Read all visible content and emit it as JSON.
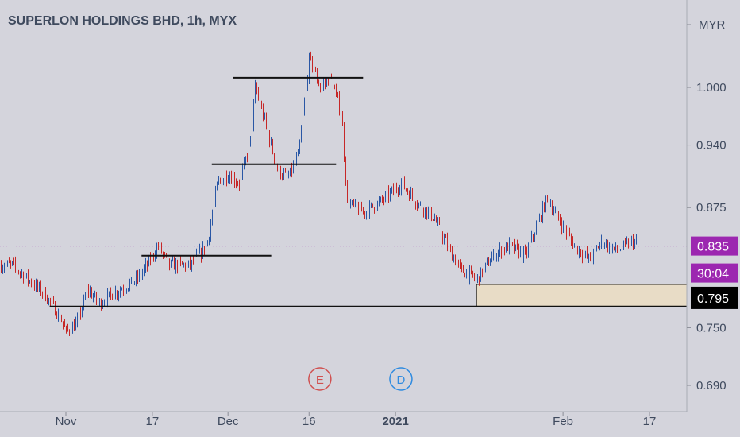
{
  "header": {
    "title": "SUPERLON HOLDINGS BHD, 1h, MYX"
  },
  "price_axis": {
    "currency": "MYR",
    "ticks": [
      "1.000",
      "0.940",
      "0.875",
      "0.750",
      "0.690"
    ],
    "tick_values": [
      1.0,
      0.94,
      0.875,
      0.75,
      0.69
    ],
    "last_price_label": "0.835",
    "countdown_label": "30:04",
    "level_label": "0.795",
    "label_bg_colors": {
      "last_price": "#9c27b0",
      "countdown": "#9c27b0",
      "level": "#000000"
    }
  },
  "time_axis": {
    "ticks": [
      {
        "label": "Nov",
        "date": "2020-11-01"
      },
      {
        "label": "17",
        "date": "2020-11-17"
      },
      {
        "label": "Dec",
        "date": "2020-12-01"
      },
      {
        "label": "16",
        "date": "2020-12-16"
      },
      {
        "label": "2021",
        "date": "2021-01-01",
        "bold": true
      },
      {
        "label": "Feb",
        "date": "2021-02-01"
      },
      {
        "label": "17",
        "date": "2021-02-17"
      }
    ]
  },
  "events": [
    {
      "letter": "E",
      "date": "2020-12-18",
      "color": "#d05050",
      "meaning": "earnings"
    },
    {
      "letter": "D",
      "date": "2021-01-02",
      "color": "#2f8be0",
      "meaning": "dividend"
    }
  ],
  "colors": {
    "up": "#2a57a5",
    "down": "#c62828",
    "background": "#d4d4dc",
    "text": "#3f4a5e",
    "zone_fill": "#e8dcc6"
  },
  "chart_data": {
    "type": "candlestick",
    "title": "SUPERLON HOLDINGS BHD, 1h, MYX",
    "ylabel": "MYR",
    "ylim": [
      0.665,
      1.09
    ],
    "xlim": [
      "2020-10-22",
      "2021-02-28"
    ],
    "last_price": 0.835,
    "price_path": [
      [
        "2020-10-22",
        0.815
      ],
      [
        "2020-10-25",
        0.8
      ],
      [
        "2020-10-28",
        0.785
      ],
      [
        "2020-10-31",
        0.76
      ],
      [
        "2020-11-01",
        0.745
      ],
      [
        "2020-11-03",
        0.755
      ],
      [
        "2020-11-05",
        0.79
      ],
      [
        "2020-11-07",
        0.775
      ],
      [
        "2020-11-11",
        0.79
      ],
      [
        "2020-11-14",
        0.8
      ],
      [
        "2020-11-16",
        0.815
      ],
      [
        "2020-11-18",
        0.835
      ],
      [
        "2020-11-20",
        0.815
      ],
      [
        "2020-11-24",
        0.815
      ],
      [
        "2020-11-27",
        0.835
      ],
      [
        "2020-11-29",
        0.9
      ],
      [
        "2020-12-01",
        0.91
      ],
      [
        "2020-12-03",
        0.9
      ],
      [
        "2020-12-05",
        0.94
      ],
      [
        "2020-12-06",
        1.0
      ],
      [
        "2020-12-08",
        0.96
      ],
      [
        "2020-12-10",
        0.915
      ],
      [
        "2020-12-12",
        0.905
      ],
      [
        "2020-12-14",
        0.93
      ],
      [
        "2020-12-16",
        1.03
      ],
      [
        "2020-12-18",
        1.0
      ],
      [
        "2020-12-20",
        1.01
      ],
      [
        "2020-12-22",
        0.97
      ],
      [
        "2020-12-23",
        0.88
      ],
      [
        "2020-12-26",
        0.87
      ],
      [
        "2020-12-29",
        0.88
      ],
      [
        "2021-01-02",
        0.9
      ],
      [
        "2021-01-05",
        0.88
      ],
      [
        "2021-01-08",
        0.865
      ],
      [
        "2021-01-11",
        0.83
      ],
      [
        "2021-01-13",
        0.81
      ],
      [
        "2021-01-16",
        0.8
      ],
      [
        "2021-01-19",
        0.825
      ],
      [
        "2021-01-22",
        0.835
      ],
      [
        "2021-01-25",
        0.825
      ],
      [
        "2021-01-28",
        0.87
      ],
      [
        "2021-01-29",
        0.885
      ],
      [
        "2021-01-31",
        0.865
      ],
      [
        "2021-02-03",
        0.835
      ],
      [
        "2021-02-06",
        0.82
      ],
      [
        "2021-02-08",
        0.84
      ],
      [
        "2021-02-11",
        0.83
      ],
      [
        "2021-02-14",
        0.84
      ],
      [
        "2021-02-15",
        0.835
      ]
    ],
    "support_resistance_lines": [
      {
        "price": 1.01,
        "from": "2020-12-02",
        "to": "2020-12-26"
      },
      {
        "price": 0.92,
        "from": "2020-11-28",
        "to": "2020-12-21"
      },
      {
        "price": 0.825,
        "from": "2020-11-15",
        "to": "2020-12-09"
      },
      {
        "price": 0.772,
        "from": "2020-10-29",
        "to": "2021-02-28"
      }
    ],
    "support_zone": {
      "low": 0.772,
      "high": 0.795,
      "from": "2021-01-16",
      "to": "2021-02-28"
    },
    "grid": false
  }
}
